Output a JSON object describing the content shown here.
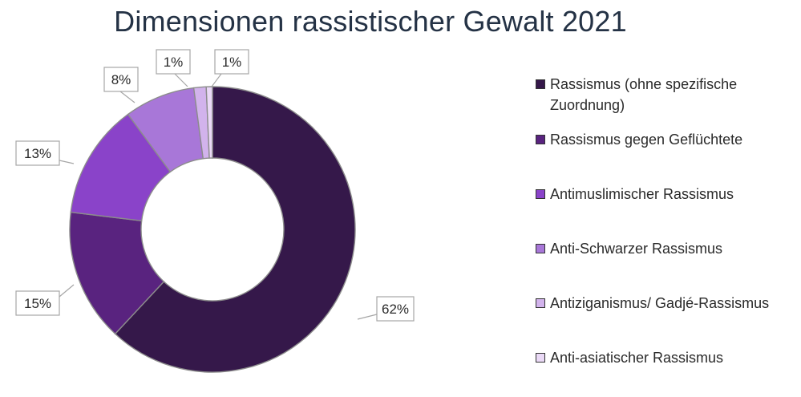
{
  "chart_data": {
    "type": "donut",
    "title": "Dimensionen rassistischer Gewalt 2021",
    "legend_position": "right",
    "series": [
      {
        "name": "Rassismus (ohne spezifische Zuordnung)",
        "value": 62,
        "label": "62%",
        "color": "#35184a"
      },
      {
        "name": "Rassismus gegen Geflüchtete",
        "value": 15,
        "label": "15%",
        "color": "#59237f"
      },
      {
        "name": "Antimuslimischer Rassismus",
        "value": 13,
        "label": "13%",
        "color": "#8a43c9"
      },
      {
        "name": "Anti-Schwarzer Rassismus",
        "value": 8,
        "label": "8%",
        "color": "#a877d8"
      },
      {
        "name": "Antiziganismus/ Gadjé-Rassismus",
        "value": 1.4,
        "label": "1%",
        "color": "#d2b3ec"
      },
      {
        "name": "Anti-asiatischer Rassismus",
        "value": 0.7,
        "label": "1%",
        "color": "#ead9f6"
      }
    ]
  }
}
